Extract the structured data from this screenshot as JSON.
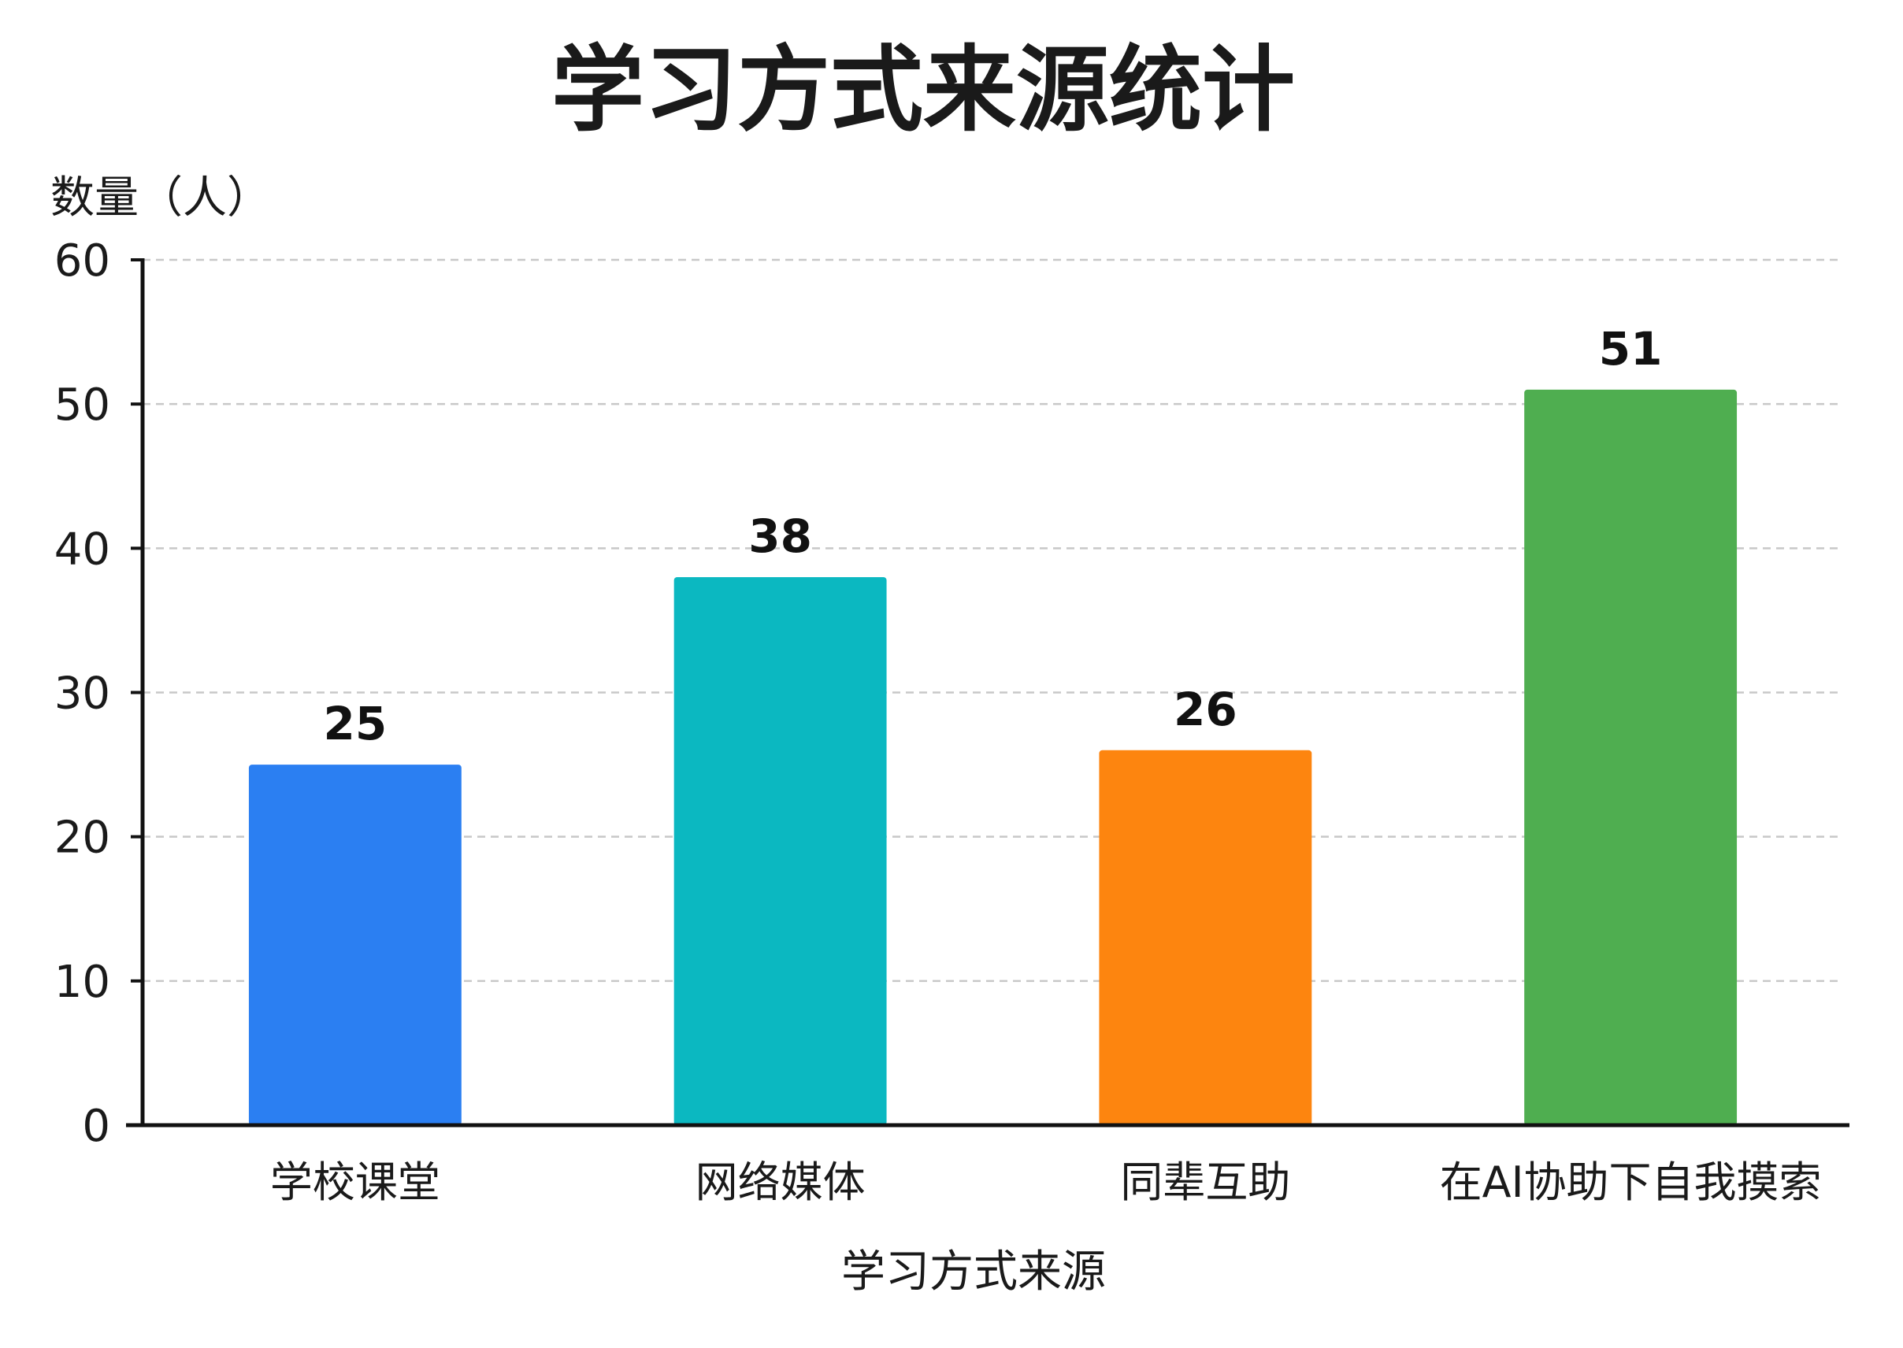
{
  "chart_data": {
    "type": "bar",
    "title": "学习方式来源统计",
    "ylabel": "数量（人）",
    "xlabel": "学习方式来源",
    "categories": [
      "学校课堂",
      "网络媒体",
      "同辈互助",
      "在AI协助下自我摸索"
    ],
    "values": [
      25,
      38,
      26,
      51
    ],
    "colors": [
      "#2b7ff2",
      "#0bb8c1",
      "#fd850f",
      "#4fae50"
    ],
    "ylim": [
      0,
      60
    ],
    "yticks": [
      0,
      10,
      20,
      30,
      40,
      50,
      60
    ],
    "grid": true,
    "legend": "none"
  }
}
